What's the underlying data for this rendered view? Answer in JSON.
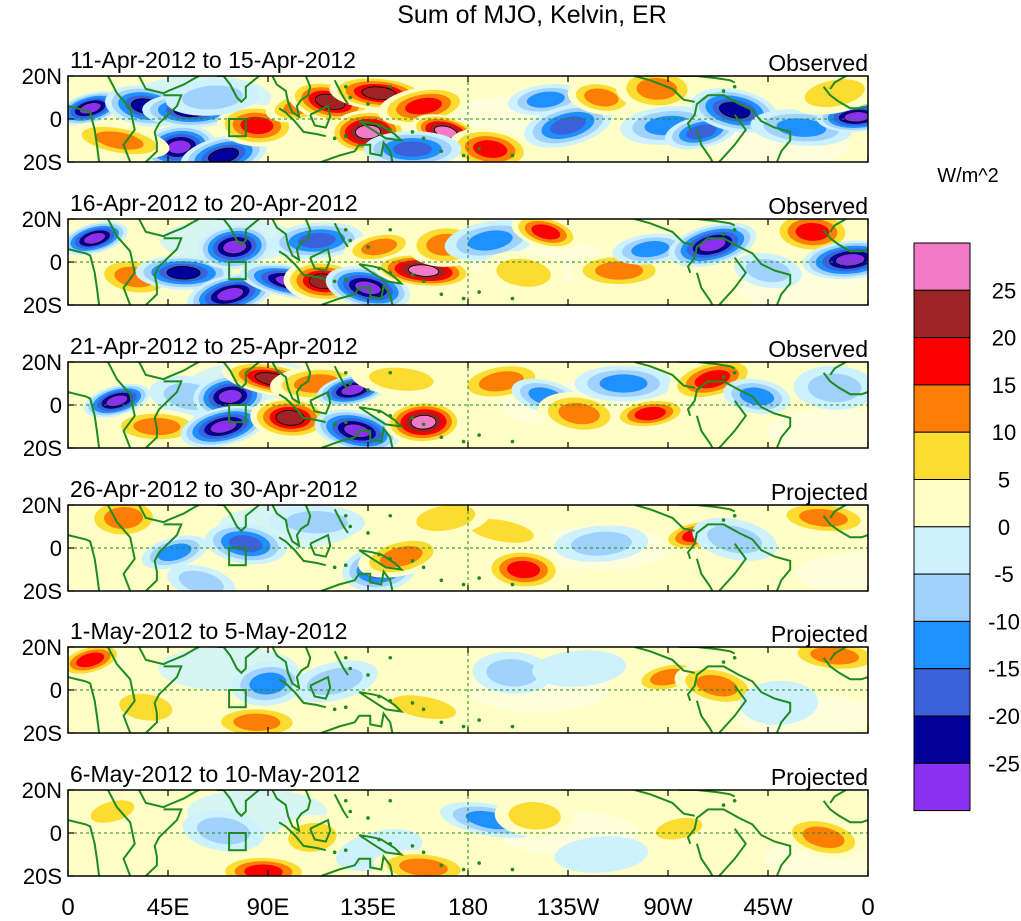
{
  "chart_data": {
    "type": "heatmap",
    "title": "Sum of MJO, Kelvin, ER",
    "units_label": "W/m^2",
    "x_ticks": [
      "0",
      "45E",
      "90E",
      "135E",
      "180",
      "135W",
      "90W",
      "45W",
      "0"
    ],
    "y_ticks": [
      "20N",
      "0",
      "20S"
    ],
    "lat_range": [
      -20,
      20
    ],
    "lon_range": [
      0,
      360
    ],
    "colorbar": {
      "labels": [
        "25",
        "20",
        "15",
        "10",
        "5",
        "0",
        "-5",
        "-10",
        "-15",
        "-20",
        "-25"
      ],
      "colors": [
        "#f37ac6",
        "#9e2325",
        "#fb0000",
        "#fd7e05",
        "#fddc32",
        "#fefec6",
        "#cdf2fd",
        "#a0d2fd",
        "#1e90ff",
        "#3b62db",
        "#01009b",
        "#8b2ff0"
      ]
    },
    "panels": [
      {
        "date_range": "11-Apr-2012 to 15-Apr-2012",
        "status": "Observed"
      },
      {
        "date_range": "16-Apr-2012 to 20-Apr-2012",
        "status": "Observed"
      },
      {
        "date_range": "21-Apr-2012 to 25-Apr-2012",
        "status": "Observed"
      },
      {
        "date_range": "26-Apr-2012 to 30-Apr-2012",
        "status": "Projected"
      },
      {
        "date_range": "1-May-2012 to 5-May-2012",
        "status": "Projected"
      },
      {
        "date_range": "6-May-2012 to 10-May-2012",
        "status": "Projected"
      }
    ],
    "anomaly_blobs": [
      [
        {
          "lon": 10,
          "lat": 5,
          "value": -28
        },
        {
          "lon": 35,
          "lat": 6,
          "value": -24
        },
        {
          "lon": 55,
          "lat": 4,
          "value": -22
        },
        {
          "lon": 50,
          "lat": -13,
          "value": -28
        },
        {
          "lon": 70,
          "lat": -17,
          "value": -24
        },
        {
          "lon": 23,
          "lat": -10,
          "value": 12
        },
        {
          "lon": 85,
          "lat": -3,
          "value": 16
        },
        {
          "lon": 65,
          "lat": 10,
          "value": -6
        },
        {
          "lon": 105,
          "lat": 6,
          "value": 10
        },
        {
          "lon": 118,
          "lat": 8,
          "value": 20
        },
        {
          "lon": 140,
          "lat": 12,
          "value": 20
        },
        {
          "lon": 135,
          "lat": -6,
          "value": 26
        },
        {
          "lon": 160,
          "lat": 6,
          "value": 18
        },
        {
          "lon": 170,
          "lat": -6,
          "value": 28
        },
        {
          "lon": 190,
          "lat": -14,
          "value": 18
        },
        {
          "lon": 155,
          "lat": -14,
          "value": -16
        },
        {
          "lon": 215,
          "lat": 9,
          "value": -10
        },
        {
          "lon": 225,
          "lat": -3,
          "value": -18
        },
        {
          "lon": 240,
          "lat": 10,
          "value": 14
        },
        {
          "lon": 265,
          "lat": 14,
          "value": 10
        },
        {
          "lon": 270,
          "lat": -3,
          "value": -10
        },
        {
          "lon": 285,
          "lat": -6,
          "value": -16
        },
        {
          "lon": 300,
          "lat": 4,
          "value": -22
        },
        {
          "lon": 330,
          "lat": -4,
          "value": -10
        },
        {
          "lon": 355,
          "lat": 1,
          "value": -28
        },
        {
          "lon": 345,
          "lat": 12,
          "value": 6
        }
      ],
      [
        {
          "lon": 12,
          "lat": 11,
          "value": -28
        },
        {
          "lon": 30,
          "lat": -7,
          "value": 12
        },
        {
          "lon": 52,
          "lat": -5,
          "value": -20
        },
        {
          "lon": 75,
          "lat": 7,
          "value": -28
        },
        {
          "lon": 73,
          "lat": -15,
          "value": -28
        },
        {
          "lon": 100,
          "lat": -9,
          "value": -26
        },
        {
          "lon": 115,
          "lat": -9,
          "value": 24
        },
        {
          "lon": 112,
          "lat": 10,
          "value": -16
        },
        {
          "lon": 140,
          "lat": 7,
          "value": 12
        },
        {
          "lon": 135,
          "lat": -12,
          "value": -28
        },
        {
          "lon": 160,
          "lat": -4,
          "value": 30
        },
        {
          "lon": 170,
          "lat": 8,
          "value": 14
        },
        {
          "lon": 190,
          "lat": 10,
          "value": -14
        },
        {
          "lon": 215,
          "lat": 14,
          "value": 18
        },
        {
          "lon": 205,
          "lat": -5,
          "value": 8
        },
        {
          "lon": 248,
          "lat": -4,
          "value": 14
        },
        {
          "lon": 262,
          "lat": 6,
          "value": -10
        },
        {
          "lon": 290,
          "lat": 8,
          "value": -26
        },
        {
          "lon": 315,
          "lat": -4,
          "value": -6
        },
        {
          "lon": 335,
          "lat": 14,
          "value": 18
        },
        {
          "lon": 352,
          "lat": 1,
          "value": -28
        }
      ],
      [
        {
          "lon": 22,
          "lat": 2,
          "value": -28
        },
        {
          "lon": 55,
          "lat": 4,
          "value": -8
        },
        {
          "lon": 40,
          "lat": -10,
          "value": 10
        },
        {
          "lon": 73,
          "lat": 4,
          "value": -28
        },
        {
          "lon": 70,
          "lat": -10,
          "value": -26
        },
        {
          "lon": 92,
          "lat": 12,
          "value": 20
        },
        {
          "lon": 100,
          "lat": -6,
          "value": 20
        },
        {
          "lon": 112,
          "lat": 10,
          "value": 14
        },
        {
          "lon": 128,
          "lat": 7,
          "value": -28
        },
        {
          "lon": 130,
          "lat": -12,
          "value": -28
        },
        {
          "lon": 150,
          "lat": 12,
          "value": 8
        },
        {
          "lon": 160,
          "lat": -8,
          "value": 30
        },
        {
          "lon": 195,
          "lat": 11,
          "value": 10
        },
        {
          "lon": 215,
          "lat": 4,
          "value": -14
        },
        {
          "lon": 230,
          "lat": -4,
          "value": 10
        },
        {
          "lon": 250,
          "lat": 10,
          "value": -12
        },
        {
          "lon": 262,
          "lat": -4,
          "value": 16
        },
        {
          "lon": 290,
          "lat": 12,
          "value": 18
        },
        {
          "lon": 310,
          "lat": 4,
          "value": -10
        },
        {
          "lon": 345,
          "lat": 8,
          "value": -8
        }
      ],
      [
        {
          "lon": 48,
          "lat": -2,
          "value": -12
        },
        {
          "lon": 80,
          "lat": 2,
          "value": -18
        },
        {
          "lon": 112,
          "lat": 12,
          "value": -8
        },
        {
          "lon": 140,
          "lat": -10,
          "value": -18
        },
        {
          "lon": 150,
          "lat": -4,
          "value": 14
        },
        {
          "lon": 195,
          "lat": 8,
          "value": 8
        },
        {
          "lon": 205,
          "lat": -10,
          "value": 16
        },
        {
          "lon": 240,
          "lat": 2,
          "value": -8
        },
        {
          "lon": 283,
          "lat": 6,
          "value": 18
        },
        {
          "lon": 300,
          "lat": 4,
          "value": -6
        },
        {
          "lon": 340,
          "lat": 14,
          "value": 14
        },
        {
          "lon": 25,
          "lat": 14,
          "value": 10
        },
        {
          "lon": 170,
          "lat": 14,
          "value": 6
        },
        {
          "lon": 60,
          "lat": -16,
          "value": -8
        }
      ],
      [
        {
          "lon": 10,
          "lat": 14,
          "value": 16
        },
        {
          "lon": 35,
          "lat": -8,
          "value": 6
        },
        {
          "lon": 85,
          "lat": -15,
          "value": 14
        },
        {
          "lon": 90,
          "lat": 3,
          "value": -10
        },
        {
          "lon": 120,
          "lat": 4,
          "value": -6
        },
        {
          "lon": 160,
          "lat": -8,
          "value": 6
        },
        {
          "lon": 200,
          "lat": 8,
          "value": -6
        },
        {
          "lon": 230,
          "lat": 10,
          "value": -4
        },
        {
          "lon": 270,
          "lat": 6,
          "value": 12
        },
        {
          "lon": 292,
          "lat": 2,
          "value": 14
        },
        {
          "lon": 345,
          "lat": 16,
          "value": 14
        },
        {
          "lon": 320,
          "lat": -6,
          "value": -4
        }
      ],
      [
        {
          "lon": 20,
          "lat": 10,
          "value": 8
        },
        {
          "lon": 70,
          "lat": 1,
          "value": -6
        },
        {
          "lon": 88,
          "lat": -18,
          "value": 16
        },
        {
          "lon": 110,
          "lat": -2,
          "value": 8
        },
        {
          "lon": 140,
          "lat": -8,
          "value": -4
        },
        {
          "lon": 190,
          "lat": 6,
          "value": -10
        },
        {
          "lon": 210,
          "lat": 8,
          "value": 8
        },
        {
          "lon": 240,
          "lat": -10,
          "value": -4
        },
        {
          "lon": 275,
          "lat": 2,
          "value": 6
        },
        {
          "lon": 340,
          "lat": -2,
          "value": 14
        },
        {
          "lon": 160,
          "lat": -16,
          "value": 10
        },
        {
          "lon": 300,
          "lat": 12,
          "value": 4
        }
      ]
    ]
  }
}
